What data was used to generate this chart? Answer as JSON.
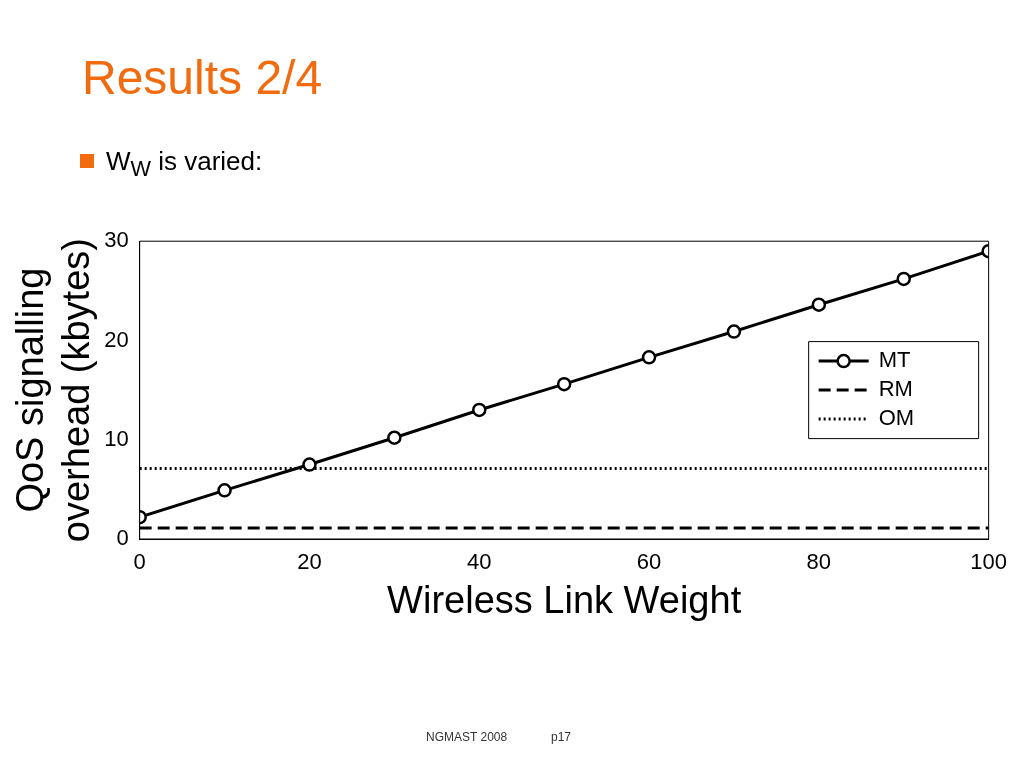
{
  "chart_data": {
    "type": "line",
    "title": "Results 2/4",
    "subtitle": "W$_{W}$ is varied:",
    "xlabel": "Wireless Link Weight",
    "ylabel": "QoS signalling overhead (kbytes)",
    "series": [
      {
        "name": "MT",
        "color": "#000000",
        "marker": "circle",
        "line_style": "solid",
        "x": [
          0,
          10,
          20,
          30,
          40,
          50,
          60,
          70,
          80,
          90,
          100
        ],
        "values": [
          2.2,
          4.9,
          7.5,
          10.2,
          13.0,
          15.6,
          18.3,
          20.9,
          23.6,
          26.2,
          29.0
        ]
      },
      {
        "name": "RM",
        "color": "#000000",
        "marker": "none",
        "line_style": "dashed",
        "x": [
          0,
          100
        ],
        "values": [
          1.1,
          1.1
        ]
      },
      {
        "name": "OM",
        "color": "#000000",
        "marker": "none",
        "line_style": "dotted",
        "x": [
          0,
          100
        ],
        "values": [
          7.1,
          7.1
        ]
      }
    ],
    "xlim": [
      0,
      100
    ],
    "xticks": [
      0,
      20,
      40,
      60,
      80,
      100
    ],
    "ylim": [
      0,
      30
    ],
    "yticks": [
      0,
      10,
      20,
      30
    ],
    "grid": false,
    "legend": "right",
    "annotations": [
      "NGMAST 2008",
      "p17"
    ]
  }
}
